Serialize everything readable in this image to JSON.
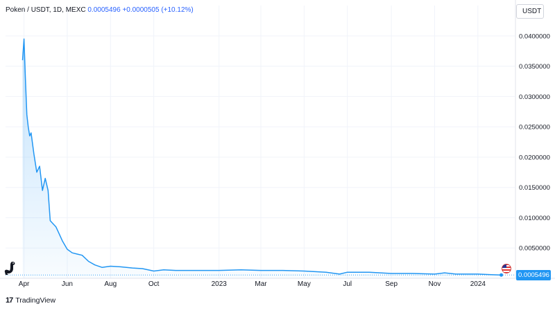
{
  "header": {
    "symbol": "Poken / USDT, 1D, MEXC",
    "last_value": "0.0005496",
    "change": "+0.0000505 (+10.12%)"
  },
  "currency_label": "USDT",
  "last_price_label": "0.0005496",
  "footer": {
    "brand_mark": "17",
    "brand_name": "TradingView"
  },
  "icons": {
    "brand": "tradingview-logo-icon",
    "mascot": "dinosaur-icon",
    "flag": "us-flag-icon"
  },
  "colors": {
    "line": "#2196f3",
    "area_top": "#2196f3",
    "grid": "#f0f3fa",
    "axis_text": "#131722",
    "last_price_bg": "#2196f3"
  },
  "chart_data": {
    "type": "area",
    "title": "Poken / USDT, 1D, MEXC",
    "xlabel": "",
    "ylabel": "",
    "ylim": [
      0,
      0.0425
    ],
    "grid": true,
    "y_ticks": [
      "0.0400000",
      "0.0350000",
      "0.0300000",
      "0.0250000",
      "0.0200000",
      "0.0150000",
      "0.0100000",
      "0.0050000"
    ],
    "x_ticks": [
      "Apr",
      "Jun",
      "Aug",
      "Oct",
      "2023",
      "Mar",
      "May",
      "Jul",
      "Sep",
      "Nov",
      "2024"
    ],
    "x": [
      "2022-03-30",
      "2022-04-01",
      "2022-04-03",
      "2022-04-05",
      "2022-04-07",
      "2022-04-09",
      "2022-04-11",
      "2022-04-15",
      "2022-04-19",
      "2022-04-23",
      "2022-04-27",
      "2022-05-01",
      "2022-05-05",
      "2022-05-08",
      "2022-05-12",
      "2022-05-16",
      "2022-05-20",
      "2022-05-25",
      "2022-06-01",
      "2022-06-08",
      "2022-06-15",
      "2022-06-22",
      "2022-07-01",
      "2022-07-10",
      "2022-07-20",
      "2022-08-01",
      "2022-08-15",
      "2022-09-01",
      "2022-09-15",
      "2022-10-01",
      "2022-10-15",
      "2022-11-01",
      "2022-12-01",
      "2023-01-01",
      "2023-02-01",
      "2023-03-01",
      "2023-04-01",
      "2023-05-01",
      "2023-06-01",
      "2023-06-20",
      "2023-07-01",
      "2023-08-01",
      "2023-09-01",
      "2023-10-01",
      "2023-11-01",
      "2023-11-15",
      "2023-12-01",
      "2024-01-01",
      "2024-01-20",
      "2024-02-03"
    ],
    "values": [
      0.036,
      0.0395,
      0.033,
      0.027,
      0.025,
      0.0235,
      0.024,
      0.0205,
      0.0175,
      0.0185,
      0.0145,
      0.0165,
      0.0145,
      0.0095,
      0.009,
      0.0085,
      0.0075,
      0.0062,
      0.0048,
      0.0042,
      0.004,
      0.0038,
      0.0028,
      0.0022,
      0.0018,
      0.002,
      0.0019,
      0.0017,
      0.0016,
      0.0012,
      0.0014,
      0.0013,
      0.0013,
      0.0013,
      0.0014,
      0.0013,
      0.0013,
      0.0012,
      0.001,
      0.0007,
      0.001,
      0.001,
      0.0008,
      0.0008,
      0.0007,
      0.0009,
      0.0007,
      0.0007,
      0.0006,
      0.0005496
    ]
  }
}
